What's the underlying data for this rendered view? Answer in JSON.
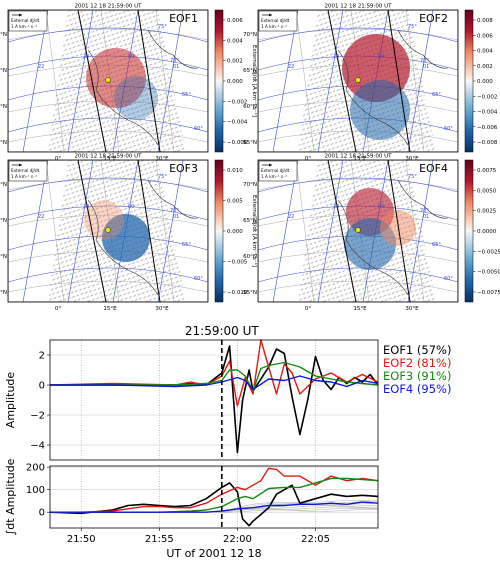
{
  "maps": {
    "datetime": "2001 12 18 21:59:00 UT",
    "arrow_legend": [
      "External dJ/dt",
      "1 A km⁻¹ s⁻¹"
    ],
    "lat_labels": [
      "70°N",
      "65°N",
      "60°N",
      "55°N"
    ],
    "lon_labels": [
      "0°",
      "15°E",
      "30°E"
    ],
    "mlat_labels": [
      "75°",
      "70°",
      "65°",
      "60°"
    ],
    "mlt_labels": [
      "22",
      "23",
      "00",
      "01"
    ],
    "colorbar_label": "External dJ/dt [A km⁻¹ s⁻¹]",
    "panels": [
      {
        "title": "EOF1",
        "colorbar_ticks": [
          "0.006",
          "0.004",
          "0.002",
          "0.000",
          "−0.002",
          "−0.004",
          "−0.006"
        ]
      },
      {
        "title": "EOF2",
        "colorbar_ticks": [
          "0.008",
          "0.006",
          "0.004",
          "0.002",
          "0.000",
          "−0.002",
          "−0.004",
          "−0.006",
          "−0.008"
        ]
      },
      {
        "title": "EOF3",
        "colorbar_ticks": [
          "0.010",
          "0.005",
          "0.000",
          "−0.005",
          "−0.010"
        ]
      },
      {
        "title": "EOF4",
        "colorbar_ticks": [
          "0.0075",
          "0.0050",
          "0.0025",
          "0.0000",
          "−0.0025",
          "−0.0050",
          "−0.0075"
        ]
      }
    ]
  },
  "chart_data": [
    {
      "type": "line",
      "title": "21:59:00 UT",
      "ylabel": "Amplitude",
      "ylim": [
        -5,
        3
      ],
      "yticks": [
        "2",
        "0",
        "−2",
        "−4"
      ],
      "xlim": [
        "21:48",
        "22:09"
      ],
      "marker_time": "21:59",
      "series": [
        {
          "name": "EOF1 (57%)",
          "color": "#000000",
          "x": [
            "21:48",
            "21:52",
            "21:56",
            "21:57",
            "21:58",
            "21:59",
            "21:59:30",
            "22:00",
            "22:00:20",
            "22:00:45",
            "22:01",
            "22:01:30",
            "22:02",
            "22:02:30",
            "22:03",
            "22:03:30",
            "22:04",
            "22:04:30",
            "22:05",
            "22:05:30",
            "22:06",
            "22:06:30",
            "22:07",
            "22:07:30",
            "22:08",
            "22:08:30",
            "22:09"
          ],
          "y": [
            0,
            0,
            0,
            0.1,
            0,
            0.8,
            2.6,
            -4.5,
            -1,
            1,
            -0.4,
            0.4,
            1.2,
            2.4,
            2.1,
            -0.8,
            -3.3,
            -1,
            1.9,
            0.3,
            -0.3,
            0.5,
            0.1,
            0.5,
            0.2,
            0.7,
            0
          ]
        },
        {
          "name": "EOF2 (81%)",
          "color": "#e0190f",
          "x": [
            "21:48",
            "21:52",
            "21:56",
            "21:57",
            "21:58",
            "21:59",
            "21:59:30",
            "22:00",
            "22:00:30",
            "22:01",
            "22:01:30",
            "22:02",
            "22:02:30",
            "22:03",
            "22:03:30",
            "22:04",
            "22:05",
            "22:06",
            "22:07",
            "22:08",
            "22:09"
          ],
          "y": [
            0,
            0.1,
            0,
            0.2,
            0,
            0.6,
            1.6,
            -1.4,
            0.5,
            -0.6,
            3,
            1.2,
            -0.6,
            1.4,
            0.8,
            -0.6,
            0.4,
            0.8,
            0.2,
            0.7,
            0.2
          ]
        },
        {
          "name": "EOF3 (91%)",
          "color": "#118a11",
          "x": [
            "21:48",
            "21:52",
            "21:56",
            "21:58",
            "21:59",
            "21:59:30",
            "22:00",
            "22:00:30",
            "22:01",
            "22:01:30",
            "22:02",
            "22:03",
            "22:04",
            "22:05",
            "22:06",
            "22:07",
            "22:08",
            "22:09"
          ],
          "y": [
            0,
            0,
            0,
            0.1,
            0.3,
            1,
            1,
            0.6,
            -0.4,
            1.1,
            1.3,
            1.5,
            1.2,
            0.6,
            0.4,
            0.2,
            0.1,
            0
          ]
        },
        {
          "name": "EOF4 (95%)",
          "color": "#0a17d6",
          "x": [
            "21:48",
            "21:52",
            "21:56",
            "21:58",
            "21:59",
            "22:00",
            "22:00:30",
            "22:01",
            "22:02",
            "22:03",
            "22:04",
            "22:05",
            "22:06",
            "22:07",
            "22:08",
            "22:09"
          ],
          "y": [
            0,
            0,
            -0.1,
            0,
            0.2,
            0.5,
            0.3,
            -0.3,
            0.4,
            0.3,
            0.6,
            0.3,
            0.2,
            -0.1,
            0.3,
            0.1
          ]
        }
      ]
    },
    {
      "type": "line",
      "ylabel": "∫dt Amplitude",
      "ylim": [
        -70,
        205
      ],
      "yticks": [
        "200",
        "100",
        "0"
      ],
      "xlim": [
        "21:48",
        "22:09"
      ],
      "xticks": [
        "21:50",
        "21:55",
        "22:00",
        "22:05"
      ],
      "xlabel": "UT of 2001 12 18",
      "marker_time": "21:59",
      "series": [
        {
          "color": "#000000",
          "x": [
            "21:48",
            "21:50",
            "21:52",
            "21:53",
            "21:54",
            "21:55",
            "21:56",
            "21:57",
            "21:58",
            "21:59",
            "21:59:30",
            "22:00",
            "22:00:20",
            "22:00:45",
            "22:01",
            "22:01:30",
            "22:02",
            "22:02:30",
            "22:03",
            "22:03:30",
            "22:04",
            "22:05",
            "22:06",
            "22:07",
            "22:08",
            "22:09"
          ],
          "y": [
            0,
            -5,
            10,
            30,
            35,
            30,
            25,
            30,
            60,
            110,
            130,
            90,
            -30,
            -60,
            -40,
            -10,
            20,
            80,
            100,
            120,
            40,
            60,
            80,
            70,
            75,
            70
          ]
        },
        {
          "color": "#e0190f",
          "x": [
            "21:48",
            "21:50",
            "21:52",
            "21:53",
            "21:54",
            "21:55",
            "21:56",
            "21:57",
            "21:58",
            "21:59",
            "22:00",
            "22:00:30",
            "22:01",
            "22:01:30",
            "22:02",
            "22:02:30",
            "22:03",
            "22:04",
            "22:05",
            "22:06",
            "22:07",
            "22:08",
            "22:09"
          ],
          "y": [
            0,
            0,
            5,
            15,
            25,
            25,
            20,
            20,
            40,
            80,
            110,
            100,
            120,
            140,
            195,
            190,
            160,
            160,
            120,
            160,
            140,
            150,
            140
          ]
        },
        {
          "color": "#118a11",
          "x": [
            "21:48",
            "21:52",
            "21:55",
            "21:57",
            "21:58",
            "21:59",
            "22:00",
            "22:00:30",
            "22:01",
            "22:02",
            "22:03",
            "22:04",
            "22:05",
            "22:06",
            "22:07",
            "22:08",
            "22:09"
          ],
          "y": [
            0,
            0,
            0,
            5,
            10,
            25,
            60,
            70,
            60,
            105,
            110,
            110,
            130,
            150,
            150,
            145,
            140
          ]
        },
        {
          "color": "#0a17d6",
          "x": [
            "21:48",
            "21:52",
            "21:55",
            "21:57",
            "21:58",
            "21:59",
            "22:00",
            "22:01",
            "22:02",
            "22:03",
            "22:04",
            "22:05",
            "22:06",
            "22:07",
            "22:08",
            "22:09"
          ],
          "y": [
            0,
            0,
            0,
            0,
            0,
            5,
            15,
            20,
            30,
            30,
            35,
            35,
            40,
            35,
            45,
            40
          ]
        }
      ]
    }
  ]
}
